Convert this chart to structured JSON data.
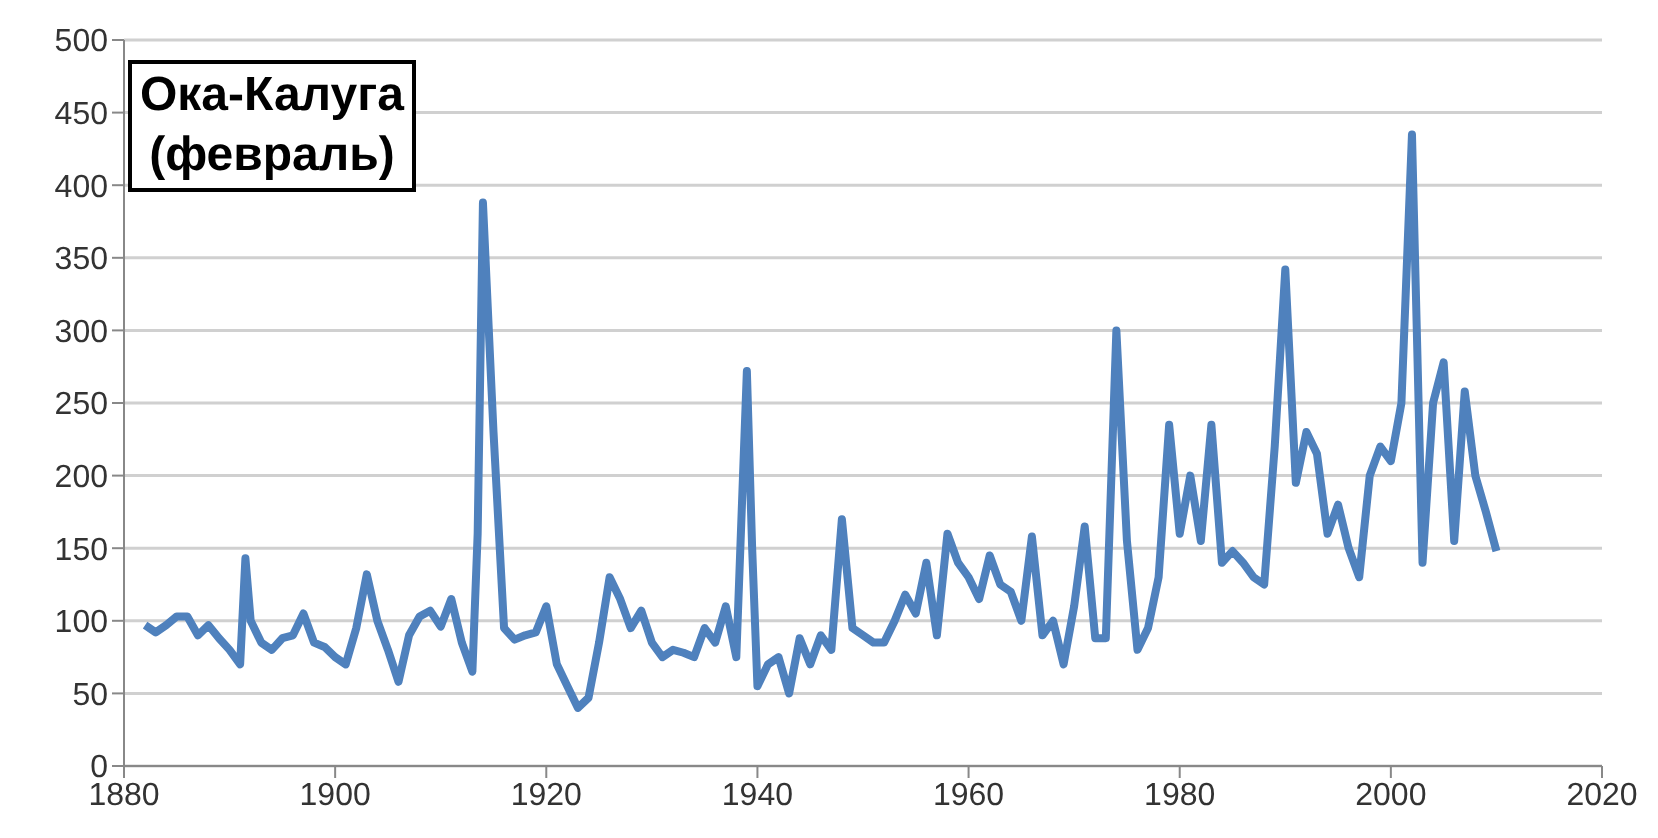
{
  "chart_data": {
    "type": "line",
    "title": "Ока-Калуга\n(февраль)",
    "x": [
      1882,
      1883,
      1884,
      1885,
      1886,
      1887,
      1888,
      1889,
      1890,
      1891,
      1891.5,
      1892,
      1893,
      1894,
      1895,
      1896,
      1897,
      1898,
      1899,
      1900,
      1901,
      1902,
      1903,
      1904,
      1905,
      1906,
      1907,
      1908,
      1909,
      1910,
      1911,
      1912,
      1913,
      1913.5,
      1914,
      1915,
      1916,
      1917,
      1918,
      1919,
      1920,
      1921,
      1922,
      1923,
      1924,
      1925,
      1926,
      1927,
      1928,
      1929,
      1930,
      1931,
      1932,
      1933,
      1934,
      1935,
      1936,
      1937,
      1938,
      1939,
      1939.5,
      1940,
      1941,
      1942,
      1943,
      1944,
      1945,
      1946,
      1947,
      1948,
      1949,
      1950,
      1951,
      1952,
      1953,
      1954,
      1955,
      1956,
      1957,
      1958,
      1959,
      1960,
      1961,
      1962,
      1963,
      1964,
      1965,
      1966,
      1967,
      1968,
      1969,
      1970,
      1971,
      1972,
      1973,
      1974,
      1975,
      1976,
      1977,
      1978,
      1979,
      1980,
      1981,
      1982,
      1983,
      1984,
      1985,
      1986,
      1987,
      1988,
      1989,
      1990,
      1991,
      1992,
      1993,
      1994,
      1995,
      1996,
      1997,
      1998,
      1999,
      2000,
      2001,
      2002,
      2003,
      2004,
      2005,
      2006,
      2007,
      2008,
      2009,
      2010
    ],
    "series": [
      {
        "color": "#4f81bd",
        "values": [
          97,
          92,
          97,
          103,
          103,
          90,
          97,
          88,
          80,
          70,
          143,
          100,
          85,
          80,
          88,
          90,
          105,
          85,
          82,
          75,
          70,
          95,
          132,
          100,
          80,
          58,
          90,
          103,
          107,
          96,
          115,
          85,
          65,
          160,
          388,
          230,
          95,
          87,
          90,
          92,
          110,
          70,
          55,
          40,
          47,
          85,
          130,
          115,
          95,
          107,
          85,
          75,
          80,
          78,
          75,
          95,
          85,
          110,
          75,
          272,
          150,
          55,
          70,
          75,
          50,
          88,
          70,
          90,
          80,
          170,
          95,
          90,
          85,
          85,
          100,
          118,
          105,
          140,
          90,
          160,
          140,
          130,
          115,
          145,
          125,
          120,
          100,
          158,
          90,
          100,
          70,
          110,
          165,
          88,
          88,
          300,
          155,
          80,
          95,
          130,
          235,
          160,
          200,
          155,
          235,
          140,
          148,
          140,
          130,
          125,
          220,
          342,
          195,
          230,
          215,
          160,
          180,
          150,
          130,
          200,
          220,
          210,
          250,
          435,
          140,
          250,
          278,
          155,
          258,
          200,
          175,
          148
        ]
      }
    ],
    "xlim": [
      1880,
      2020
    ],
    "xticks": [
      1880,
      1900,
      1920,
      1940,
      1960,
      1980,
      2000,
      2020
    ],
    "ylim": [
      0,
      500
    ],
    "yticks": [
      0,
      50,
      100,
      150,
      200,
      250,
      300,
      350,
      400,
      450,
      500
    ],
    "grid": "y",
    "marker": "none",
    "line_style": "solid"
  }
}
